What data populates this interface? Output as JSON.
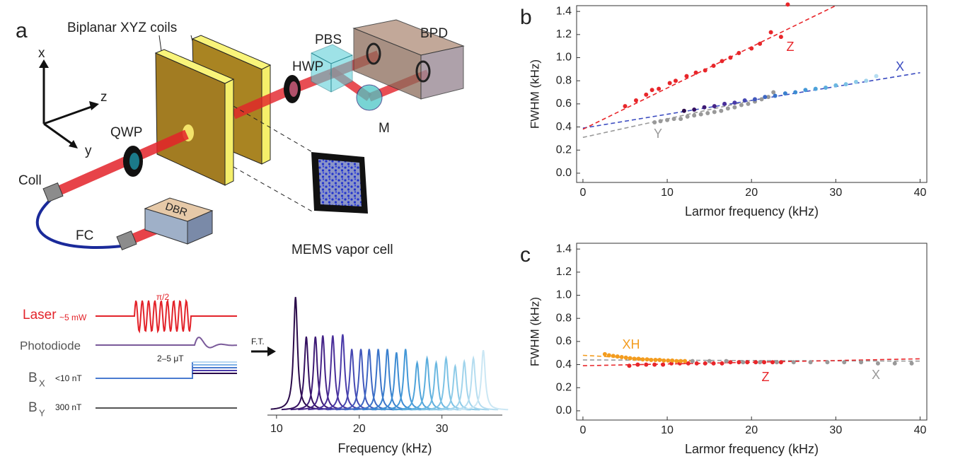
{
  "diagram": {
    "panel": "a",
    "coils": "Biplanar XYZ coils",
    "hwp": "HWP",
    "pbs": "PBS",
    "bpd": "BPD",
    "axis_x": "x",
    "axis_z": "z",
    "axis_y": "y",
    "qwp": "QWP",
    "m": "M",
    "coll": "Coll",
    "fc": "FC",
    "dbr": "DBR",
    "mems": "MEMS vapor cell"
  },
  "pulse": {
    "laser": "Laser",
    "laser_power": "~5 mW",
    "pulse_angle": "π/2",
    "photodiode": "Photodiode",
    "bx": "B",
    "bx_sub": "X",
    "bx_value": "<10 nT",
    "bx_step": "2–5 μT",
    "by": "B",
    "by_sub": "Y",
    "by_value": "300 nT",
    "transform": "F.T."
  },
  "chart_data": [
    {
      "type": "spectrum",
      "xlabel": "Frequency (kHz)",
      "x": [
        12.3,
        13.6,
        14.7,
        15.6,
        16.8,
        18.0,
        19.1,
        20.2,
        21.2,
        22.3,
        23.4,
        24.5,
        25.6,
        27.0,
        28.2,
        29.3,
        30.5,
        31.6,
        32.7,
        33.8,
        35.0
      ],
      "values": [
        1.0,
        0.65,
        0.65,
        0.66,
        0.66,
        0.67,
        0.54,
        0.54,
        0.54,
        0.54,
        0.54,
        0.51,
        0.54,
        0.42,
        0.46,
        0.42,
        0.46,
        0.39,
        0.43,
        0.46,
        0.53
      ],
      "colors": [
        "#2a0a4a",
        "#341060",
        "#3d1a75",
        "#452488",
        "#4a2f99",
        "#4a3aa8",
        "#4648b2",
        "#4157bb",
        "#3d66c3",
        "#3a73c9",
        "#3a80ce",
        "#3d8cd3",
        "#4498d7",
        "#4ea3da",
        "#5caedd",
        "#6bb8e1",
        "#7cc2e5",
        "#8ecbe8",
        "#a1d4ec",
        "#b5ddf0",
        "#cbe7f4"
      ],
      "xlim": [
        8.9,
        37.3
      ],
      "ylim": [
        0,
        1
      ],
      "xticks": [
        10,
        20,
        30
      ]
    },
    {
      "type": "scatter",
      "panel": "b",
      "xlabel": "Larmor frequency (kHz)",
      "ylabel": "FWHM (kHz)",
      "xlim": [
        -0.75,
        40.8
      ],
      "ylim": [
        -0.08,
        1.45
      ],
      "xticks": [
        0,
        10,
        20,
        30,
        40
      ],
      "yticks": [
        {
          "value": 0,
          "label": "0.0"
        },
        0.2,
        0.4,
        0.6,
        0.8,
        {
          "value": 1,
          "label": "1.0"
        },
        1.2,
        1.4
      ],
      "series": [
        {
          "name": "Y",
          "color": "#999999",
          "x": [
            8.5,
            9.2,
            10,
            10.8,
            11.6,
            12.4,
            13.2,
            14,
            14.8,
            15.6,
            16.4,
            17.2,
            18,
            18.8,
            19.6,
            20.4,
            21.2,
            22,
            22.6
          ],
          "values": [
            0.44,
            0.45,
            0.46,
            0.47,
            0.47,
            0.49,
            0.5,
            0.51,
            0.52,
            0.53,
            0.54,
            0.56,
            0.57,
            0.59,
            0.6,
            0.62,
            0.64,
            0.66,
            0.7
          ],
          "fit": {
            "x": [
              0,
              20
            ],
            "values": [
              0.31,
              0.63
            ]
          }
        },
        {
          "name": "X",
          "color": "#3b4cc0",
          "x": [
            12,
            13.2,
            14.4,
            15.6,
            16.8,
            18,
            19.2,
            20.4,
            21.6,
            22.8,
            24,
            25.2,
            26.4,
            27.6,
            28.8,
            30,
            31.2,
            32.4,
            33.6,
            34.8
          ],
          "values": [
            0.54,
            0.55,
            0.57,
            0.58,
            0.6,
            0.61,
            0.63,
            0.64,
            0.66,
            0.67,
            0.69,
            0.7,
            0.72,
            0.73,
            0.74,
            0.76,
            0.77,
            0.79,
            0.8,
            0.84
          ],
          "colors": [
            "#2a0a4a",
            "#341060",
            "#3d1a75",
            "#452488",
            "#4a2f99",
            "#4a3aa8",
            "#4648b2",
            "#4157bb",
            "#3d66c3",
            "#3a73c9",
            "#3a80ce",
            "#3d8cd3",
            "#4498d7",
            "#4ea3da",
            "#5caedd",
            "#6bb8e1",
            "#7cc2e5",
            "#8ecbe8",
            "#a1d4ec",
            "#b5ddf0"
          ],
          "fit": {
            "x": [
              0,
              40
            ],
            "values": [
              0.39,
              0.87
            ]
          }
        },
        {
          "name": "Z",
          "color": "#e8262a",
          "x": [
            5,
            6.3,
            7.5,
            8.2,
            9,
            10.3,
            11,
            12.3,
            13.4,
            14.5,
            15.5,
            16.5,
            17.5,
            18.5,
            20,
            21,
            22.3,
            23.5,
            24.3
          ],
          "values": [
            0.58,
            0.63,
            0.68,
            0.72,
            0.73,
            0.78,
            0.8,
            0.84,
            0.87,
            0.89,
            0.93,
            0.97,
            1.0,
            1.04,
            1.08,
            1.12,
            1.22,
            1.18,
            1.46
          ],
          "fit": {
            "x": [
              0,
              30
            ],
            "values": [
              0.38,
              1.45
            ]
          }
        }
      ]
    },
    {
      "type": "scatter",
      "panel": "c",
      "xlabel": "Larmor frequency (kHz)",
      "ylabel": "FWHM (kHz)",
      "xlim": [
        -0.75,
        40.8
      ],
      "ylim": [
        -0.08,
        1.45
      ],
      "xticks": [
        0,
        10,
        20,
        30,
        40
      ],
      "yticks": [
        {
          "value": 0,
          "label": "0.0"
        },
        0.2,
        0.4,
        0.6,
        0.8,
        {
          "value": 1,
          "label": "1.0"
        },
        1.2,
        1.4
      ],
      "series": [
        {
          "name": "X",
          "color": "#999999",
          "x": [
            13,
            15,
            17,
            19,
            21,
            23,
            25,
            27,
            29,
            31,
            33,
            35,
            37,
            39
          ],
          "values": [
            0.43,
            0.43,
            0.43,
            0.42,
            0.42,
            0.42,
            0.42,
            0.42,
            0.42,
            0.42,
            0.42,
            0.41,
            0.41,
            0.41
          ],
          "fit": {
            "x": [
              0,
              40
            ],
            "values": [
              0.44,
              0.43
            ]
          }
        },
        {
          "name": "Z",
          "color": "#e8262a",
          "x": [
            5.5,
            6.5,
            7.5,
            8.5,
            9.5,
            10.5,
            11.5,
            12.5,
            13.5,
            14.5,
            15.5,
            16.5,
            17.5,
            18.5,
            19.5,
            20.5,
            21.5,
            22.5,
            23.5
          ],
          "values": [
            0.39,
            0.4,
            0.4,
            0.4,
            0.4,
            0.41,
            0.41,
            0.41,
            0.41,
            0.41,
            0.41,
            0.41,
            0.42,
            0.42,
            0.42,
            0.42,
            0.42,
            0.42,
            0.42
          ],
          "fit": {
            "x": [
              0,
              40
            ],
            "values": [
              0.39,
              0.45
            ]
          }
        },
        {
          "name": "XH",
          "color": "#f39c1e",
          "x": [
            2.6,
            3.1,
            3.6,
            4.1,
            4.6,
            5.1,
            5.6,
            6.1,
            6.6,
            7.1,
            7.6,
            8.1,
            8.6,
            9.1,
            9.6,
            10.1,
            10.6,
            11.1,
            11.6,
            12.1
          ],
          "values": [
            0.49,
            0.48,
            0.475,
            0.47,
            0.465,
            0.46,
            0.455,
            0.45,
            0.45,
            0.445,
            0.445,
            0.44,
            0.44,
            0.44,
            0.435,
            0.435,
            0.435,
            0.43,
            0.43,
            0.43
          ],
          "fit": {
            "x": [
              0,
              13
            ],
            "values": [
              0.48,
              0.43
            ]
          }
        }
      ]
    }
  ]
}
